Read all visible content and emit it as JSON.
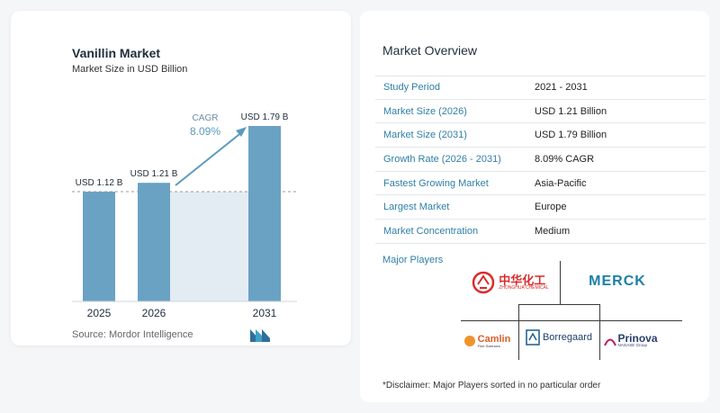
{
  "chart_data": {
    "type": "bar",
    "title": "Vanillin Market",
    "subtitle": "Market Size in USD Billion",
    "categories": [
      "2025",
      "2026",
      "2031"
    ],
    "values": [
      1.12,
      1.21,
      1.79
    ],
    "value_labels": [
      "USD 1.12 B",
      "USD 1.21 B",
      "USD 1.79 B"
    ],
    "ylim": [
      0,
      1.79
    ],
    "cagr_label": "CAGR",
    "cagr_value": "8.09%",
    "colors": {
      "bar": "#6aa2c4",
      "bar_last": "#6aa2c4",
      "shade": "#e3ecf3",
      "arrow": "#5b9bbf",
      "axis": "#999999"
    }
  },
  "source": "Source:  Mordor Intelligence",
  "overview": {
    "title": "Market Overview",
    "rows": [
      {
        "label": "Study Period",
        "value": "2021 - 2031"
      },
      {
        "label": "Market Size (2026)",
        "value": "USD 1.21 Billion"
      },
      {
        "label": "Market Size (2031)",
        "value": "USD 1.79 Billion"
      },
      {
        "label": "Growth Rate (2026 - 2031)",
        "value": "8.09% CAGR"
      },
      {
        "label": "Fastest Growing Market",
        "value": "Asia-Pacific"
      },
      {
        "label": "Largest Market",
        "value": "Europe"
      },
      {
        "label": "Market Concentration",
        "value": "Medium"
      }
    ]
  },
  "players": {
    "title": "Major Players",
    "logos": {
      "zhonghua": {
        "text": "中华化工",
        "sub": "ZHONGHUA CHEMICAL"
      },
      "merck": {
        "text": "MERCK"
      },
      "camlin": {
        "text": "Camlin",
        "sub": "Fine Sciences"
      },
      "borregaard": {
        "text": "Borregaard"
      },
      "prinova": {
        "text": "Prinova",
        "sub": "NAGASE Group"
      }
    }
  },
  "disclaimer": "*Disclaimer: Major Players sorted in no particular order"
}
